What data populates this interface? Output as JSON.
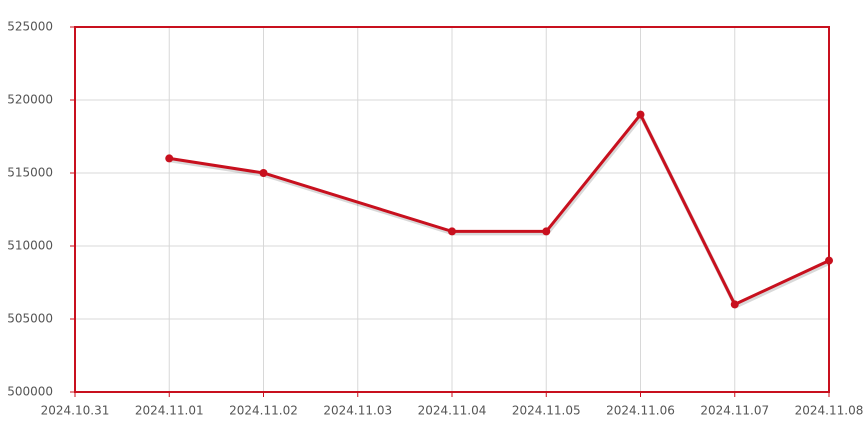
{
  "chart_data": {
    "type": "line",
    "categories": [
      "2024.10.31",
      "2024.11.01",
      "2024.11.02",
      "2024.11.03",
      "2024.11.04",
      "2024.11.05",
      "2024.11.06",
      "2024.11.07",
      "2024.11.08"
    ],
    "x": [
      "2024.11.01",
      "2024.11.02",
      "2024.11.04",
      "2024.11.05",
      "2024.11.06",
      "2024.11.07",
      "2024.11.08"
    ],
    "values": [
      516000,
      515000,
      511000,
      511000,
      519000,
      506000,
      509000
    ],
    "color": "#c8101e",
    "ylim": [
      500000,
      525000
    ],
    "yticks": [
      500000,
      505000,
      510000,
      515000,
      520000,
      525000
    ],
    "grid": true
  }
}
